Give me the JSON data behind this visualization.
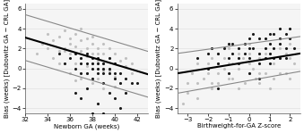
{
  "left_plot": {
    "xlabel": "Newborn GA (weeks)",
    "ylabel": "Bias (weeks) [Dubowitz GA − CRL GA]",
    "xlim": [
      32,
      43
    ],
    "ylim": [
      -4.5,
      6.5
    ],
    "xticks": [
      32,
      34,
      36,
      38,
      40,
      42
    ],
    "yticks": [
      -4,
      -2,
      0,
      2,
      4,
      6
    ],
    "trend_line": {
      "x": [
        32,
        43
      ],
      "y": [
        3.1,
        -0.6
      ]
    },
    "ci_upper": {
      "x": [
        32,
        43
      ],
      "y": [
        5.4,
        1.7
      ]
    },
    "ci_lower": {
      "x": [
        32,
        43
      ],
      "y": [
        0.8,
        -2.9
      ]
    },
    "gray_dots": [
      [
        33.5,
        2.5
      ],
      [
        34.0,
        3.5
      ],
      [
        34.5,
        2.8
      ],
      [
        35.0,
        3.2
      ],
      [
        35.5,
        2.0
      ],
      [
        35.5,
        3.8
      ],
      [
        36.0,
        1.5
      ],
      [
        36.0,
        2.5
      ],
      [
        36.0,
        3.0
      ],
      [
        36.5,
        2.2
      ],
      [
        36.5,
        3.5
      ],
      [
        37.0,
        1.8
      ],
      [
        37.0,
        2.8
      ],
      [
        37.0,
        4.0
      ],
      [
        37.0,
        1.0
      ],
      [
        37.5,
        2.0
      ],
      [
        37.5,
        3.0
      ],
      [
        37.5,
        1.2
      ],
      [
        38.0,
        2.5
      ],
      [
        38.0,
        1.5
      ],
      [
        38.0,
        0.5
      ],
      [
        38.0,
        3.2
      ],
      [
        38.5,
        2.0
      ],
      [
        38.5,
        0.8
      ],
      [
        38.5,
        1.5
      ],
      [
        39.0,
        1.5
      ],
      [
        39.0,
        0.5
      ],
      [
        39.0,
        2.5
      ],
      [
        39.5,
        1.0
      ],
      [
        39.5,
        2.0
      ],
      [
        40.0,
        0.5
      ],
      [
        40.0,
        1.5
      ],
      [
        40.5,
        0.8
      ],
      [
        41.0,
        0.2
      ],
      [
        41.5,
        -0.5
      ],
      [
        33.0,
        1.5
      ],
      [
        34.5,
        1.0
      ],
      [
        35.0,
        0.5
      ],
      [
        36.0,
        -0.5
      ],
      [
        37.0,
        -1.0
      ],
      [
        38.0,
        -1.5
      ],
      [
        39.0,
        -2.0
      ],
      [
        40.0,
        -0.8
      ],
      [
        35.5,
        1.8
      ],
      [
        36.5,
        0.5
      ],
      [
        37.5,
        -0.5
      ],
      [
        38.5,
        -1.0
      ],
      [
        39.5,
        -0.2
      ],
      [
        40.5,
        -1.5
      ],
      [
        41.0,
        1.0
      ],
      [
        34.0,
        2.0
      ],
      [
        35.0,
        1.8
      ],
      [
        36.5,
        -1.2
      ],
      [
        37.5,
        0.2
      ],
      [
        39.0,
        -0.2
      ],
      [
        40.0,
        -1.8
      ],
      [
        41.5,
        0.5
      ]
    ],
    "black_dots": [
      [
        35.0,
        1.5
      ],
      [
        35.5,
        0.5
      ],
      [
        36.0,
        1.0
      ],
      [
        36.5,
        0.0
      ],
      [
        36.5,
        1.5
      ],
      [
        37.0,
        0.5
      ],
      [
        37.0,
        -0.5
      ],
      [
        37.0,
        1.0
      ],
      [
        37.5,
        0.5
      ],
      [
        37.5,
        -0.5
      ],
      [
        37.5,
        1.5
      ],
      [
        38.0,
        0.0
      ],
      [
        38.0,
        1.0
      ],
      [
        38.0,
        -1.0
      ],
      [
        38.0,
        0.5
      ],
      [
        38.5,
        0.0
      ],
      [
        38.5,
        -0.5
      ],
      [
        38.5,
        1.0
      ],
      [
        38.5,
        0.5
      ],
      [
        39.0,
        -0.5
      ],
      [
        39.0,
        0.5
      ],
      [
        39.0,
        0.0
      ],
      [
        39.0,
        -1.5
      ],
      [
        39.5,
        0.0
      ],
      [
        39.5,
        -0.5
      ],
      [
        39.5,
        1.0
      ],
      [
        40.0,
        -0.5
      ],
      [
        40.0,
        0.5
      ],
      [
        40.0,
        -1.0
      ],
      [
        40.5,
        -0.5
      ],
      [
        40.5,
        -1.5
      ],
      [
        41.0,
        -1.0
      ],
      [
        41.0,
        -2.5
      ],
      [
        41.5,
        -1.5
      ],
      [
        42.0,
        -1.5
      ],
      [
        38.0,
        -4.5
      ],
      [
        39.0,
        -4.5
      ],
      [
        40.5,
        -4.0
      ],
      [
        36.5,
        -2.5
      ],
      [
        37.5,
        -2.0
      ],
      [
        39.5,
        -2.5
      ],
      [
        40.0,
        -3.0
      ],
      [
        38.5,
        -3.5
      ],
      [
        37.0,
        -3.0
      ]
    ]
  },
  "right_plot": {
    "xlabel": "Birthweight-for-GA Z-score",
    "ylabel": "Bias (weeks) [Dubowitz GA − CRL GA]",
    "xlim": [
      -3.5,
      2.5
    ],
    "ylim": [
      -4.5,
      6.5
    ],
    "xticks": [
      -3,
      -2,
      -1,
      0,
      1,
      2
    ],
    "yticks": [
      -4,
      -2,
      0,
      2,
      4,
      6
    ],
    "trend_line": {
      "x": [
        -3.5,
        2.5
      ],
      "y": [
        -0.5,
        1.5
      ]
    },
    "ci_upper": {
      "x": [
        -3.5,
        2.5
      ],
      "y": [
        1.5,
        3.2
      ]
    },
    "ci_lower": {
      "x": [
        -3.5,
        2.5
      ],
      "y": [
        -2.5,
        -0.3
      ]
    },
    "gray_dots": [
      [
        -3.2,
        -3.5
      ],
      [
        -3.0,
        -2.5
      ],
      [
        -2.8,
        -0.5
      ],
      [
        -2.5,
        -1.5
      ],
      [
        -2.5,
        0.5
      ],
      [
        -2.2,
        -1.0
      ],
      [
        -2.0,
        0.5
      ],
      [
        -2.0,
        -0.5
      ],
      [
        -1.8,
        1.0
      ],
      [
        -1.8,
        -1.5
      ],
      [
        -1.5,
        0.5
      ],
      [
        -1.5,
        -0.5
      ],
      [
        -1.5,
        1.5
      ],
      [
        -1.2,
        0.0
      ],
      [
        -1.2,
        1.0
      ],
      [
        -1.0,
        0.5
      ],
      [
        -1.0,
        -1.0
      ],
      [
        -0.8,
        0.5
      ],
      [
        -0.5,
        0.0
      ],
      [
        -0.5,
        1.5
      ],
      [
        0.0,
        0.5
      ],
      [
        0.0,
        1.5
      ],
      [
        0.2,
        0.0
      ],
      [
        0.5,
        1.0
      ],
      [
        0.5,
        -0.5
      ],
      [
        0.8,
        1.5
      ],
      [
        1.0,
        1.0
      ],
      [
        1.2,
        0.5
      ],
      [
        1.5,
        1.0
      ],
      [
        1.5,
        2.0
      ],
      [
        1.8,
        1.5
      ],
      [
        2.0,
        1.0
      ],
      [
        2.2,
        0.5
      ],
      [
        -0.2,
        -1.5
      ],
      [
        -1.8,
        -2.0
      ],
      [
        -2.5,
        -3.0
      ],
      [
        0.5,
        -1.5
      ],
      [
        1.0,
        -2.0
      ],
      [
        1.5,
        -0.5
      ],
      [
        2.0,
        -1.0
      ],
      [
        -1.0,
        2.0
      ],
      [
        0.0,
        -0.5
      ],
      [
        0.0,
        2.5
      ],
      [
        -0.5,
        -2.0
      ],
      [
        1.0,
        2.5
      ],
      [
        -3.0,
        -1.5
      ],
      [
        2.0,
        2.5
      ],
      [
        1.8,
        -0.5
      ],
      [
        -0.8,
        -1.0
      ],
      [
        -1.5,
        -1.5
      ],
      [
        0.8,
        -0.5
      ],
      [
        1.2,
        -1.0
      ],
      [
        -0.3,
        1.0
      ],
      [
        0.3,
        -1.0
      ]
    ],
    "black_dots": [
      [
        -2.5,
        1.0
      ],
      [
        -2.0,
        1.5
      ],
      [
        -1.8,
        2.0
      ],
      [
        -1.5,
        1.5
      ],
      [
        -1.2,
        2.0
      ],
      [
        -1.0,
        1.0
      ],
      [
        -1.0,
        2.5
      ],
      [
        -0.8,
        1.5
      ],
      [
        -0.5,
        1.0
      ],
      [
        -0.5,
        2.0
      ],
      [
        -0.2,
        1.5
      ],
      [
        0.0,
        1.0
      ],
      [
        0.0,
        2.0
      ],
      [
        0.0,
        3.0
      ],
      [
        0.2,
        2.0
      ],
      [
        0.5,
        1.5
      ],
      [
        0.5,
        3.0
      ],
      [
        0.8,
        2.0
      ],
      [
        0.8,
        3.0
      ],
      [
        1.0,
        1.5
      ],
      [
        1.0,
        3.5
      ],
      [
        1.0,
        2.5
      ],
      [
        1.2,
        2.0
      ],
      [
        1.2,
        3.5
      ],
      [
        1.5,
        2.5
      ],
      [
        1.5,
        3.0
      ],
      [
        1.8,
        2.0
      ],
      [
        1.8,
        3.5
      ],
      [
        2.0,
        3.0
      ],
      [
        2.0,
        4.0
      ],
      [
        -0.5,
        0.5
      ],
      [
        -1.5,
        0.5
      ],
      [
        -2.0,
        0.0
      ],
      [
        0.5,
        0.5
      ],
      [
        1.0,
        0.5
      ],
      [
        1.5,
        1.0
      ],
      [
        0.0,
        -0.5
      ],
      [
        -1.0,
        -0.5
      ],
      [
        -0.2,
        2.5
      ],
      [
        0.8,
        1.0
      ],
      [
        1.2,
        1.0
      ],
      [
        -1.5,
        -2.0
      ],
      [
        0.5,
        -1.0
      ],
      [
        1.8,
        1.0
      ],
      [
        2.2,
        2.0
      ],
      [
        -0.8,
        2.5
      ],
      [
        0.2,
        3.5
      ],
      [
        1.5,
        4.0
      ]
    ]
  },
  "dot_size": 5,
  "gray_color": "#bbbbbb",
  "black_color": "#1a1a1a",
  "trend_color": "#000000",
  "ci_color": "#888888",
  "trend_lw": 1.5,
  "ci_lw": 0.8,
  "tick_fontsize": 5.0,
  "label_fontsize": 5.0,
  "grid_color": "#dddddd",
  "bg_color": "#f5f5f5"
}
